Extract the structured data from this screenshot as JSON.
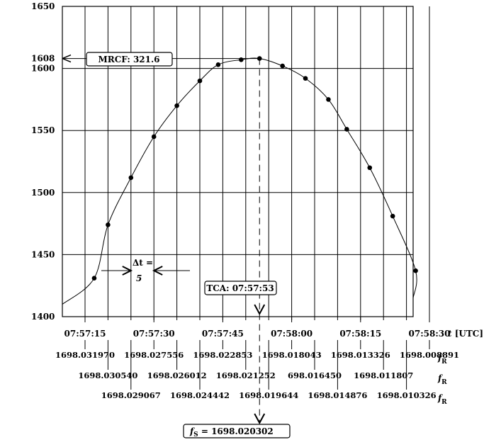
{
  "chart_data": {
    "type": "scatter",
    "ylim": [
      1400,
      1650
    ],
    "y_ticks": [
      "1400",
      "1450",
      "1500",
      "1550",
      "1600",
      "1608",
      "1650"
    ],
    "x_tick_labels": [
      "07:57:15",
      "07:57:30",
      "07:57:45",
      "07:58:00",
      "07:58:15",
      "07:58:30"
    ],
    "x_axis_label_italic": "t",
    "x_axis_label_unit": "[UTC]",
    "freq_label_symbol": "f",
    "freq_label_subscript": "R",
    "freq_rows": [
      [
        "1698.031970",
        "1698.027556",
        "1698.022853",
        "1698.018043",
        "1698.013326",
        "1698.008891"
      ],
      [
        "1698.030540",
        "1698.026012",
        "1698.021252",
        "698.016450",
        "1698.011807"
      ],
      [
        "1698.029067",
        "1698.024442",
        "1698.019644",
        "1698.014876",
        "1698.010326"
      ]
    ],
    "series": [
      {
        "x": [
          "07:57:17",
          "07:57:20",
          "07:57:25",
          "07:57:30",
          "07:57:35",
          "07:57:40",
          "07:57:44",
          "07:57:49",
          "07:57:53",
          "07:57:58",
          "07:58:03",
          "07:58:08",
          "07:58:12",
          "07:58:17",
          "07:58:22",
          "07:58:27"
        ],
        "y": [
          1431,
          1474,
          1512,
          1545,
          1570,
          1590,
          1603,
          1607,
          1608,
          1602,
          1592,
          1575,
          1551,
          1520,
          1481,
          1437
        ]
      }
    ],
    "annotations": {
      "mrcf": "MRCF: 321.6",
      "tca": "TCA: 07:57:53",
      "delta_t_symbol": "Δt =",
      "delta_t_value": "5",
      "fs_symbol": "f",
      "fs_subscript": "S",
      "fs_value": "= 1698.020302"
    }
  }
}
